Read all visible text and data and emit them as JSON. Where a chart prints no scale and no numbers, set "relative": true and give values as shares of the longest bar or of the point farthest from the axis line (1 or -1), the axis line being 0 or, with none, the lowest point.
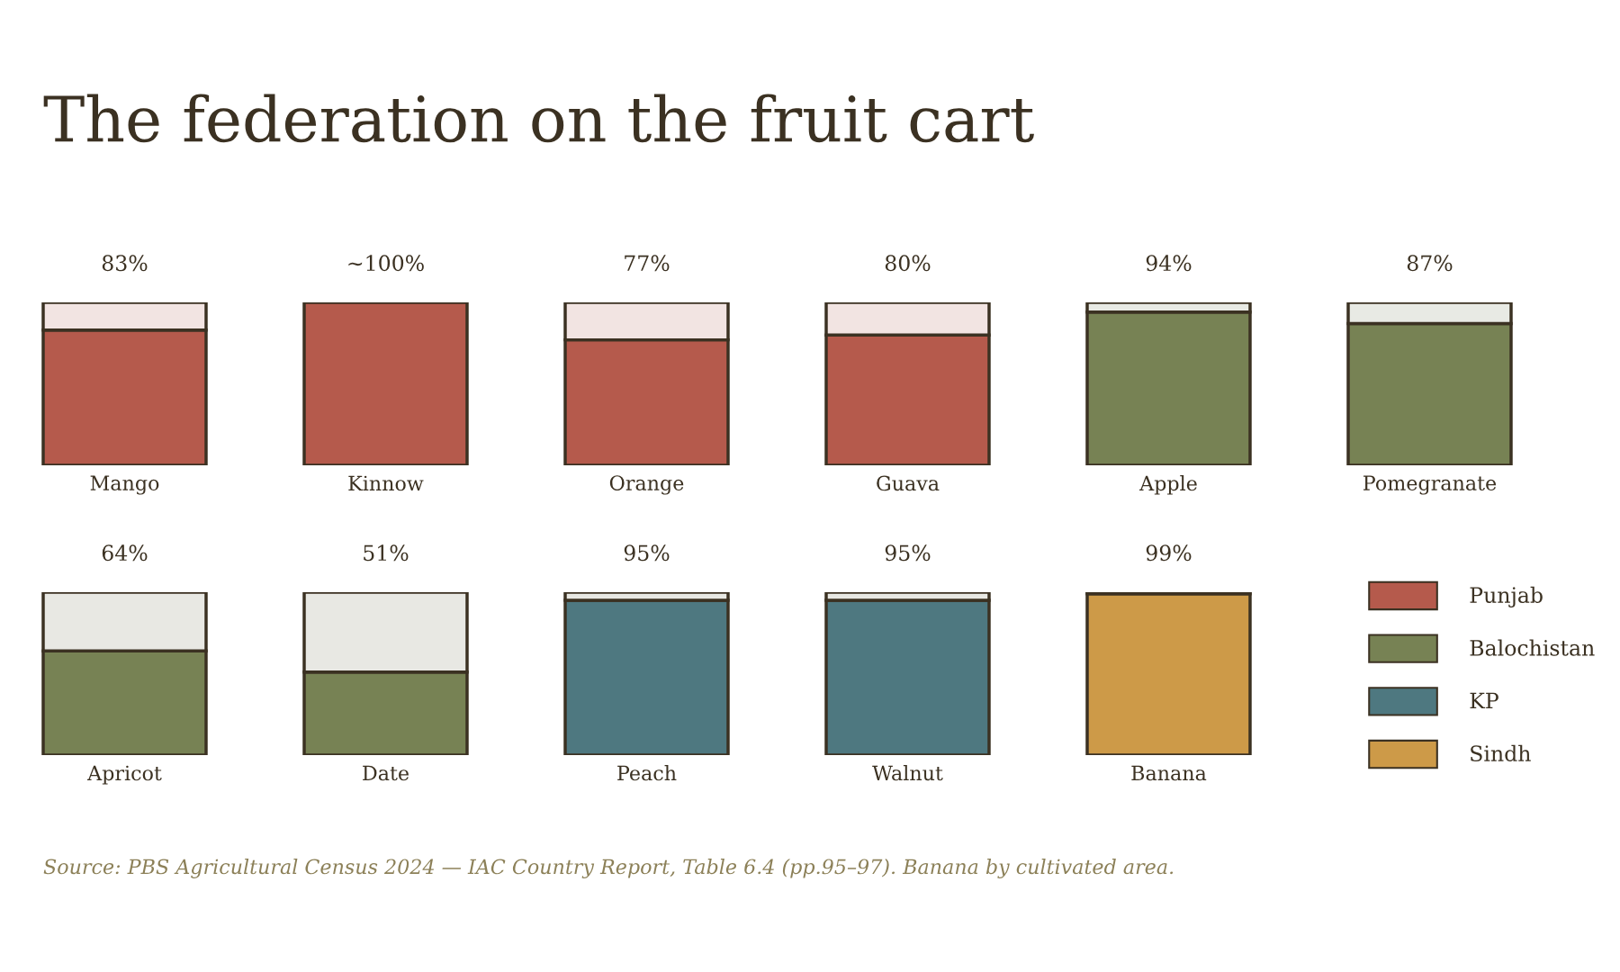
{
  "chart_data": [
    {
      "type": "bar",
      "title": "The federation on the fruit cart",
      "categories": [
        "Mango",
        "Kinnow",
        "Orange",
        "Guava",
        "Apple",
        "Pomegranate"
      ],
      "stacked": true,
      "relative": true,
      "legend": "right",
      "value_labels": [
        "83%",
        "~100%",
        "77%",
        "80%",
        "94%",
        "87%"
      ],
      "series": [
        {
          "name": "Punjab",
          "color": "#b55a4c",
          "values": [
            0.83,
            1.0,
            0.77,
            0.8,
            null,
            null
          ]
        },
        {
          "name": "Balochistan",
          "color": "#778254",
          "values": [
            null,
            null,
            null,
            null,
            0.94,
            0.87
          ]
        },
        {
          "colors": [
            "#f2e4e2",
            "#f2e4e2",
            "#f2e4e2",
            "#f2e4e2",
            "#e8eae4",
            "#e8eae4"
          ],
          "values": [
            0.17,
            null,
            0.23,
            0.2,
            0.06,
            0.13
          ]
        }
      ]
    },
    {
      "type": "bar",
      "categories": [
        "Apricot",
        "Date",
        "Peach",
        "Walnut",
        "Banana"
      ],
      "stacked": true,
      "relative": true,
      "legend": "right",
      "value_labels": [
        "64%",
        "51%",
        "95%",
        "95%",
        "99%"
      ],
      "annotations": [
        "Source: PBS Agricultural Census 2024 — IAC Country Report, Table 6.4 (pp.95–97). Banana by cultivated area."
      ],
      "series": [
        {
          "name": "Balochistan",
          "color": "#778254",
          "values": [
            0.64,
            0.51,
            null,
            null,
            null
          ]
        },
        {
          "name": "KP",
          "color": "#4e7880",
          "values": [
            null,
            null,
            0.95,
            0.95,
            null
          ]
        },
        {
          "name": "Sindh",
          "color": "#cd9a48",
          "values": [
            null,
            null,
            null,
            null,
            0.99
          ]
        },
        {
          "colors": [
            "#e8e8e3",
            "#e8e8e3",
            "#e8e8e3",
            "#e8e8e3",
            "#e8e8e3"
          ],
          "values": [
            0.36,
            0.49,
            0.05,
            0.05,
            0.01
          ]
        }
      ]
    }
  ]
}
